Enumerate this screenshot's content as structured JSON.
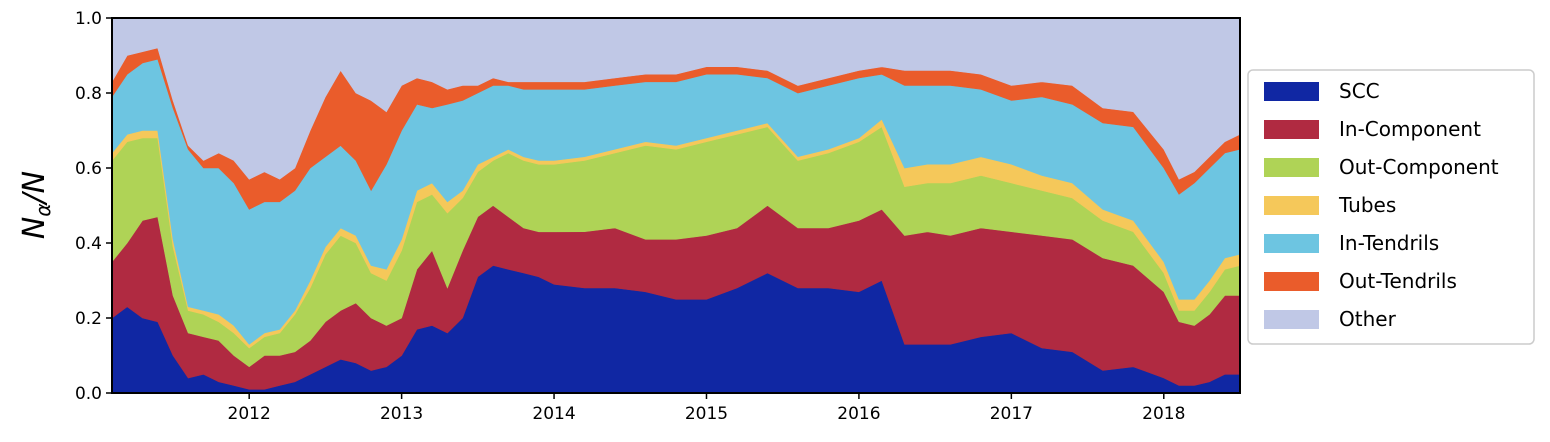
{
  "chart_data": {
    "type": "area",
    "stacked": true,
    "normalized": true,
    "ylabel_main": "N",
    "ylabel_sub": "α",
    "ylabel_tail": "/N",
    "xlabel": "",
    "title": "",
    "x_ticks": [
      "2012",
      "2013",
      "2014",
      "2015",
      "2016",
      "2017",
      "2018"
    ],
    "y_ticks": [
      "0.0",
      "0.2",
      "0.4",
      "0.6",
      "0.8",
      "1.0"
    ],
    "xlim": [
      2011.1,
      2018.5
    ],
    "ylim": [
      0,
      1
    ],
    "grid": false,
    "legend_position": "right",
    "x": [
      2011.1,
      2011.2,
      2011.3,
      2011.4,
      2011.5,
      2011.6,
      2011.7,
      2011.8,
      2011.9,
      2012.0,
      2012.1,
      2012.2,
      2012.3,
      2012.4,
      2012.5,
      2012.6,
      2012.7,
      2012.8,
      2012.9,
      2013.0,
      2013.1,
      2013.2,
      2013.3,
      2013.4,
      2013.5,
      2013.6,
      2013.7,
      2013.8,
      2013.9,
      2014.0,
      2014.2,
      2014.4,
      2014.6,
      2014.8,
      2015.0,
      2015.2,
      2015.4,
      2015.6,
      2015.8,
      2016.0,
      2016.15,
      2016.3,
      2016.45,
      2016.6,
      2016.8,
      2017.0,
      2017.2,
      2017.4,
      2017.6,
      2017.8,
      2018.0,
      2018.1,
      2018.2,
      2018.3,
      2018.4,
      2018.5
    ],
    "series": [
      {
        "name": "SCC",
        "color": "#1027a3",
        "values": [
          0.2,
          0.23,
          0.2,
          0.19,
          0.1,
          0.04,
          0.05,
          0.03,
          0.02,
          0.01,
          0.01,
          0.02,
          0.03,
          0.05,
          0.07,
          0.09,
          0.08,
          0.06,
          0.07,
          0.1,
          0.17,
          0.18,
          0.16,
          0.2,
          0.31,
          0.34,
          0.33,
          0.32,
          0.31,
          0.29,
          0.28,
          0.28,
          0.27,
          0.25,
          0.25,
          0.28,
          0.32,
          0.28,
          0.28,
          0.27,
          0.3,
          0.13,
          0.13,
          0.13,
          0.15,
          0.16,
          0.12,
          0.11,
          0.06,
          0.07,
          0.04,
          0.02,
          0.02,
          0.03,
          0.05,
          0.05
        ]
      },
      {
        "name": "In-Component",
        "color": "#b02a41",
        "values": [
          0.15,
          0.17,
          0.26,
          0.28,
          0.16,
          0.12,
          0.1,
          0.11,
          0.08,
          0.06,
          0.09,
          0.08,
          0.08,
          0.09,
          0.12,
          0.13,
          0.16,
          0.14,
          0.11,
          0.1,
          0.16,
          0.2,
          0.12,
          0.18,
          0.16,
          0.16,
          0.14,
          0.12,
          0.12,
          0.14,
          0.15,
          0.16,
          0.14,
          0.16,
          0.17,
          0.16,
          0.18,
          0.16,
          0.16,
          0.19,
          0.19,
          0.29,
          0.3,
          0.29,
          0.29,
          0.27,
          0.3,
          0.3,
          0.3,
          0.27,
          0.23,
          0.17,
          0.16,
          0.18,
          0.21,
          0.21
        ]
      },
      {
        "name": "Out-Component",
        "color": "#afd356",
        "values": [
          0.27,
          0.27,
          0.22,
          0.21,
          0.13,
          0.06,
          0.06,
          0.05,
          0.06,
          0.05,
          0.05,
          0.06,
          0.1,
          0.14,
          0.18,
          0.2,
          0.16,
          0.12,
          0.12,
          0.18,
          0.18,
          0.15,
          0.2,
          0.14,
          0.12,
          0.12,
          0.17,
          0.18,
          0.18,
          0.18,
          0.19,
          0.2,
          0.25,
          0.24,
          0.25,
          0.25,
          0.21,
          0.18,
          0.2,
          0.21,
          0.22,
          0.13,
          0.13,
          0.14,
          0.14,
          0.13,
          0.12,
          0.11,
          0.1,
          0.09,
          0.05,
          0.03,
          0.04,
          0.06,
          0.07,
          0.08
        ]
      },
      {
        "name": "Tubes",
        "color": "#f5c85a",
        "values": [
          0.02,
          0.02,
          0.02,
          0.02,
          0.02,
          0.01,
          0.01,
          0.02,
          0.02,
          0.01,
          0.01,
          0.01,
          0.01,
          0.02,
          0.02,
          0.02,
          0.02,
          0.02,
          0.03,
          0.03,
          0.03,
          0.03,
          0.03,
          0.02,
          0.02,
          0.01,
          0.01,
          0.01,
          0.01,
          0.01,
          0.01,
          0.01,
          0.01,
          0.01,
          0.01,
          0.01,
          0.01,
          0.01,
          0.01,
          0.01,
          0.02,
          0.05,
          0.05,
          0.05,
          0.05,
          0.05,
          0.04,
          0.04,
          0.03,
          0.03,
          0.03,
          0.03,
          0.03,
          0.03,
          0.03,
          0.03
        ]
      },
      {
        "name": "In-Tendrils",
        "color": "#6dc5e1",
        "values": [
          0.15,
          0.16,
          0.18,
          0.19,
          0.35,
          0.42,
          0.38,
          0.39,
          0.38,
          0.36,
          0.35,
          0.34,
          0.32,
          0.3,
          0.24,
          0.22,
          0.2,
          0.2,
          0.28,
          0.29,
          0.23,
          0.2,
          0.26,
          0.24,
          0.19,
          0.19,
          0.17,
          0.18,
          0.19,
          0.19,
          0.18,
          0.17,
          0.16,
          0.17,
          0.17,
          0.15,
          0.12,
          0.17,
          0.17,
          0.16,
          0.12,
          0.22,
          0.21,
          0.21,
          0.18,
          0.17,
          0.21,
          0.21,
          0.23,
          0.25,
          0.25,
          0.28,
          0.31,
          0.3,
          0.28,
          0.28
        ]
      },
      {
        "name": "Out-Tendrils",
        "color": "#ea5c2b",
        "values": [
          0.04,
          0.05,
          0.03,
          0.03,
          0.02,
          0.01,
          0.02,
          0.04,
          0.06,
          0.08,
          0.08,
          0.06,
          0.06,
          0.1,
          0.16,
          0.2,
          0.18,
          0.24,
          0.14,
          0.12,
          0.07,
          0.07,
          0.04,
          0.04,
          0.02,
          0.02,
          0.01,
          0.02,
          0.02,
          0.02,
          0.02,
          0.02,
          0.02,
          0.02,
          0.02,
          0.02,
          0.02,
          0.02,
          0.02,
          0.02,
          0.02,
          0.04,
          0.04,
          0.04,
          0.04,
          0.04,
          0.04,
          0.05,
          0.04,
          0.04,
          0.05,
          0.04,
          0.03,
          0.03,
          0.03,
          0.04
        ]
      },
      {
        "name": "Other",
        "color": "#c0c8e6",
        "values": [
          0.17,
          0.1,
          0.09,
          0.08,
          0.22,
          0.34,
          0.38,
          0.36,
          0.38,
          0.43,
          0.41,
          0.43,
          0.4,
          0.3,
          0.21,
          0.14,
          0.2,
          0.22,
          0.25,
          0.18,
          0.16,
          0.17,
          0.19,
          0.18,
          0.18,
          0.16,
          0.17,
          0.17,
          0.17,
          0.17,
          0.17,
          0.16,
          0.15,
          0.15,
          0.13,
          0.13,
          0.14,
          0.18,
          0.16,
          0.14,
          0.13,
          0.14,
          0.14,
          0.14,
          0.15,
          0.18,
          0.17,
          0.18,
          0.24,
          0.25,
          0.35,
          0.43,
          0.41,
          0.37,
          0.33,
          0.31
        ]
      }
    ]
  }
}
